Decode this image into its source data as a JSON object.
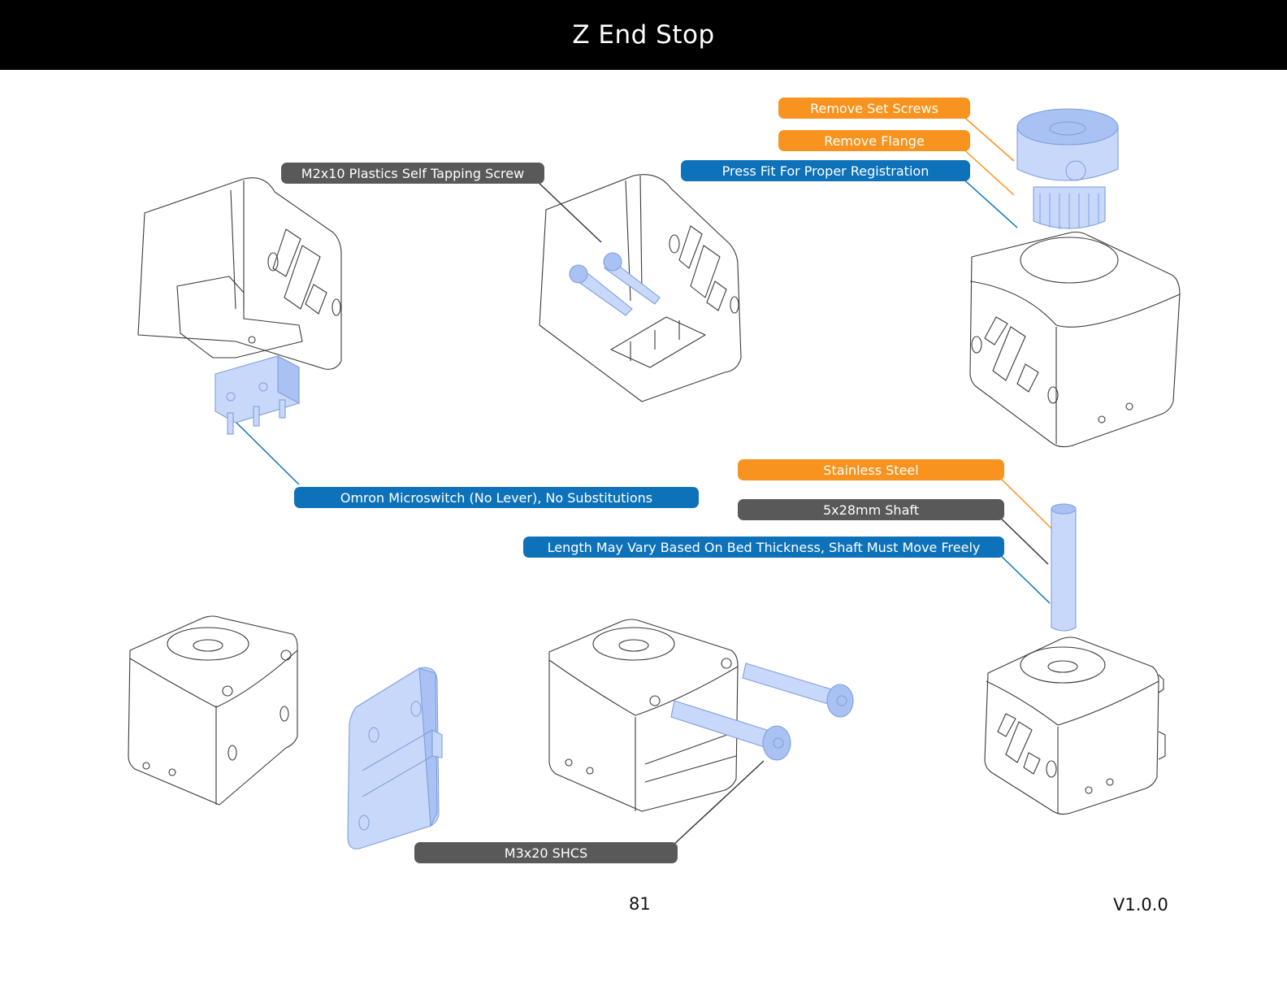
{
  "header": {
    "title": "Z End Stop"
  },
  "callouts": {
    "remove_set_screws": "Remove Set Screws",
    "remove_flange": "Remove Flange",
    "press_fit": "Press Fit For Proper Registration",
    "m2_screw": "M2x10 Plastics Self Tapping Screw",
    "microswitch": "Omron Microswitch (No Lever), No Substitutions",
    "stainless": "Stainless Steel",
    "shaft": "5x28mm Shaft",
    "length_note": "Length May Vary Based On Bed Thickness, Shaft Must Move Freely",
    "m3_shcs": "M3x20 SHCS"
  },
  "colors": {
    "header_bg": "#000000",
    "callout_orange": "#f7931e",
    "callout_blue": "#0d72b9",
    "callout_gray": "#595959",
    "part_highlight": "#c8d8fb"
  },
  "footer": {
    "page_number": "81",
    "version": "V1.0.0"
  }
}
